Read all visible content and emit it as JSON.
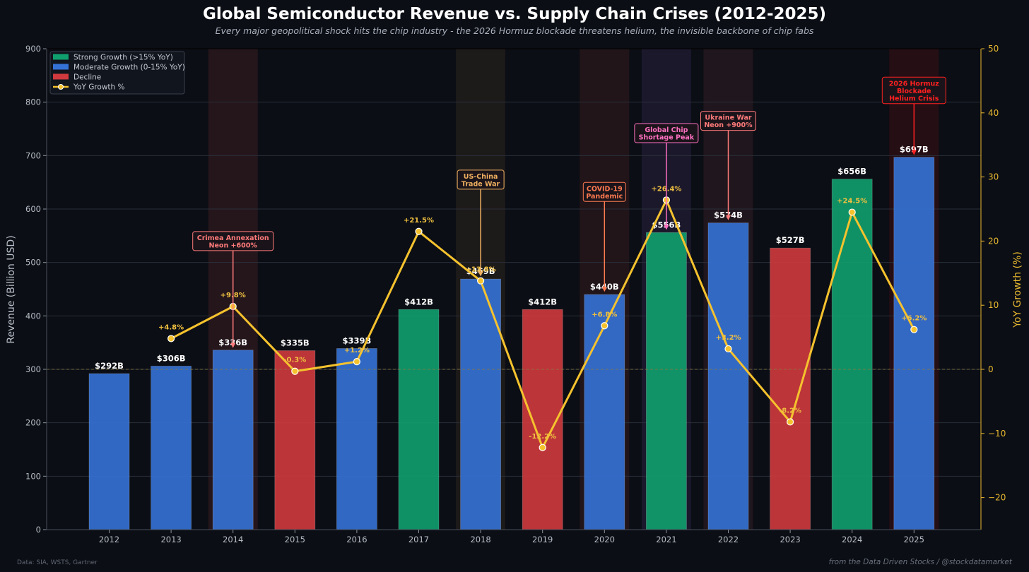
{
  "title": "Global Semiconductor Revenue vs. Supply Chain Crises (2012-2025)",
  "subtitle": "Every major geopolitical shock hits the chip industry - the 2026 Hormuz blockade threatens helium, the invisible backbone of chip fabs",
  "footer": {
    "source": "Data: SIA, WSTS, Gartner",
    "credit": "from the Data Driven Stocks / @stockdatamarket"
  },
  "colors": {
    "strong": "#10a06e",
    "moderate": "#3572d6",
    "decline": "#d03a3e",
    "line": "#f5c22e"
  },
  "chart_data": {
    "type": "bar",
    "categories": [
      "2012",
      "2013",
      "2014",
      "2015",
      "2016",
      "2017",
      "2018",
      "2019",
      "2020",
      "2021",
      "2022",
      "2023",
      "2024",
      "2025"
    ],
    "revenue": [
      292,
      306,
      336,
      335,
      339,
      412,
      469,
      412,
      440,
      556,
      574,
      527,
      656,
      697
    ],
    "revenue_labels": [
      "$292B",
      "$306B",
      "$336B",
      "$335B",
      "$339B",
      "$412B",
      "$469B",
      "$412B",
      "$440B",
      "$556B",
      "$574B",
      "$527B",
      "$656B",
      "$697B"
    ],
    "bar_category": [
      "moderate",
      "moderate",
      "moderate",
      "decline",
      "moderate",
      "strong",
      "moderate",
      "decline",
      "moderate",
      "strong",
      "moderate",
      "decline",
      "strong",
      "moderate"
    ],
    "growth": [
      null,
      4.8,
      9.8,
      -0.3,
      1.2,
      21.5,
      13.8,
      -12.2,
      6.8,
      26.4,
      3.2,
      -8.2,
      24.5,
      6.2
    ],
    "growth_labels": [
      "",
      "+4.8%",
      "+9.8%",
      "-0.3%",
      "+1.2%",
      "+21.5%",
      "+13.8%",
      "-12.2%",
      "+6.8%",
      "+26.4%",
      "+3.2%",
      "-8.2%",
      "+24.5%",
      "+6.2%"
    ],
    "ylabel_left": "Revenue (Billion USD)",
    "ylabel_right": "YoY Growth (%)",
    "ylim_left": [
      0,
      900
    ],
    "ylim_right": [
      -25,
      50
    ],
    "yticks_left": [
      "0",
      "100",
      "200",
      "300",
      "400",
      "500",
      "600",
      "700",
      "800",
      "900"
    ],
    "yticks_right": [
      "−20",
      "−10",
      "0",
      "10",
      "20",
      "30",
      "40",
      "50"
    ],
    "yticks_right_values": [
      -20,
      -10,
      0,
      10,
      20,
      30,
      40,
      50
    ],
    "grid": true,
    "legend_position": "top-left",
    "legend": [
      {
        "label": "Strong Growth (>15% YoY)",
        "kind": "strong"
      },
      {
        "label": "Moderate Growth (0-15% YoY)",
        "kind": "moderate"
      },
      {
        "label": "Decline",
        "kind": "decline"
      },
      {
        "label": "YoY Growth %",
        "kind": "line"
      }
    ],
    "crises": [
      {
        "year": "2014",
        "lines": [
          "Crimea Annexation",
          "Neon +600%"
        ],
        "color": "#ff7a7a",
        "shade": "#2a181d",
        "label_value": 540,
        "arrow_to": 340
      },
      {
        "year": "2018",
        "lines": [
          "US-China",
          "Trade War"
        ],
        "color": "#f0b060",
        "shade": "#211c1b",
        "label_value": 655,
        "arrow_to": 474
      },
      {
        "year": "2020",
        "lines": [
          "COVID-19",
          "Pandemic"
        ],
        "color": "#ff7a50",
        "shade": "#26161a",
        "label_value": 632,
        "arrow_to": 445
      },
      {
        "year": "2021",
        "lines": [
          "Global Chip",
          "Shortage Peak"
        ],
        "color": "#ff70c0",
        "shade": "#1f1a30",
        "label_value": 742,
        "arrow_to": 561
      },
      {
        "year": "2022",
        "lines": [
          "Ukraine War",
          "Neon +900%"
        ],
        "color": "#ff7a7a",
        "shade": "#24181e",
        "label_value": 765,
        "arrow_to": 579
      },
      {
        "year": "2025",
        "lines": [
          "2026 Hormuz",
          "Blockade",
          "Helium Crisis"
        ],
        "color": "#ff2020",
        "shade": "#2a0e14",
        "label_value": 822,
        "arrow_to": 701
      }
    ]
  }
}
